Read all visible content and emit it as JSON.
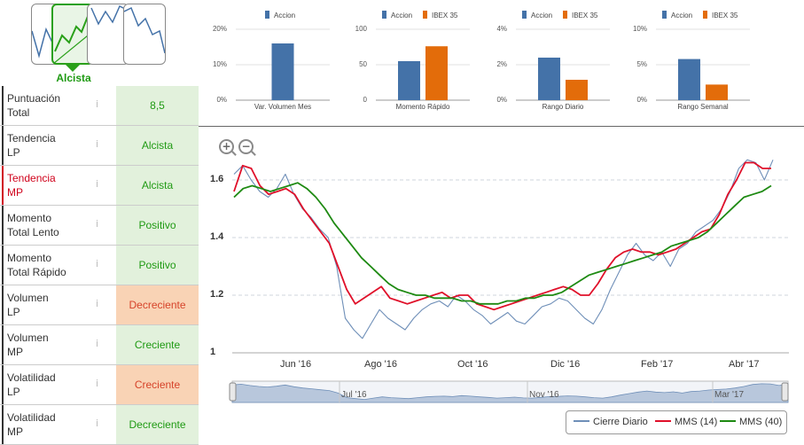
{
  "trend": {
    "selected_label": "Alcista"
  },
  "indicators": [
    {
      "label": "Puntuación\nTotal",
      "value": "8,5",
      "status": "green",
      "label_red": false
    },
    {
      "label": "Tendencia\nLP",
      "value": "Alcista",
      "status": "green",
      "label_red": false
    },
    {
      "label": "Tendencia\nMP",
      "value": "Alcista",
      "status": "green",
      "label_red": true
    },
    {
      "label": "Momento\nTotal Lento",
      "value": "Positivo",
      "status": "green",
      "label_red": false
    },
    {
      "label": "Momento\nTotal Rápido",
      "value": "Positivo",
      "status": "green",
      "label_red": false
    },
    {
      "label": "Volumen\nLP",
      "value": "Decreciente",
      "status": "orange",
      "label_red": false
    },
    {
      "label": "Volumen\nMP",
      "value": "Creciente",
      "status": "green",
      "label_red": false
    },
    {
      "label": "Volatilidad\nLP",
      "value": "Creciente",
      "status": "orange",
      "label_red": false
    },
    {
      "label": "Volatilidad\nMP",
      "value": "Decreciente",
      "status": "green",
      "label_red": false
    }
  ],
  "info_icon": "i",
  "colors": {
    "accion": "#4472a8",
    "ibex": "#e36c0a",
    "green_text": "#1f9a13",
    "cierre": "#6f8fb8",
    "mms14": "#e0102a",
    "mms40": "#1e8a12"
  },
  "mini_charts": [
    {
      "legend": [
        "Accion"
      ],
      "ticks": [
        "20%",
        "10%",
        "0%"
      ],
      "xlabel": "Var. Volumen Mes",
      "values": [
        16
      ],
      "max": 20
    },
    {
      "legend": [
        "Accion",
        "IBEX 35"
      ],
      "ticks": [
        "100",
        "50",
        "0"
      ],
      "xlabel": "Momento Rápido",
      "values": [
        55,
        76
      ],
      "max": 100
    },
    {
      "legend": [
        "Accion",
        "IBEX 35"
      ],
      "ticks": [
        "4%",
        "2%",
        "0%"
      ],
      "xlabel": "Rango Diario",
      "values": [
        2.4,
        1.15
      ],
      "max": 4
    },
    {
      "legend": [
        "Accion",
        "IBEX 35"
      ],
      "ticks": [
        "10%",
        "5%",
        "0%"
      ],
      "xlabel": "Rango Semanal",
      "values": [
        5.8,
        2.2
      ],
      "max": 10
    }
  ],
  "zoom": {
    "in": "+",
    "out": "−"
  },
  "chart_data": {
    "type": "line",
    "y_ticks": [
      "1.6",
      "1.4",
      "1.2",
      "1"
    ],
    "ylim": [
      1.0,
      1.68
    ],
    "x_ticks": [
      "Jun '16",
      "Ago '16",
      "Oct '16",
      "Dic '16",
      "Feb '17",
      "Abr '17"
    ],
    "navigator_labels": [
      "Jul '16",
      "Nov '16",
      "Mar '17"
    ],
    "series": [
      {
        "name": "Cierre Diario",
        "values": [
          1.62,
          1.65,
          1.6,
          1.56,
          1.54,
          1.57,
          1.62,
          1.55,
          1.5,
          1.47,
          1.43,
          1.4,
          1.3,
          1.12,
          1.08,
          1.05,
          1.1,
          1.15,
          1.12,
          1.1,
          1.08,
          1.12,
          1.15,
          1.17,
          1.18,
          1.16,
          1.2,
          1.18,
          1.15,
          1.13,
          1.1,
          1.12,
          1.14,
          1.11,
          1.1,
          1.13,
          1.16,
          1.17,
          1.19,
          1.18,
          1.15,
          1.12,
          1.1,
          1.15,
          1.22,
          1.28,
          1.34,
          1.38,
          1.34,
          1.32,
          1.35,
          1.3,
          1.36,
          1.38,
          1.42,
          1.44,
          1.46,
          1.5,
          1.56,
          1.64,
          1.67,
          1.66,
          1.6,
          1.67
        ]
      },
      {
        "name": "MMS (14)",
        "values": [
          1.56,
          1.65,
          1.64,
          1.58,
          1.55,
          1.56,
          1.57,
          1.55,
          1.5,
          1.46,
          1.42,
          1.38,
          1.3,
          1.22,
          1.17,
          1.19,
          1.21,
          1.23,
          1.19,
          1.18,
          1.17,
          1.18,
          1.19,
          1.2,
          1.21,
          1.19,
          1.2,
          1.2,
          1.17,
          1.16,
          1.15,
          1.16,
          1.17,
          1.18,
          1.19,
          1.2,
          1.21,
          1.22,
          1.23,
          1.22,
          1.2,
          1.2,
          1.24,
          1.29,
          1.33,
          1.35,
          1.36,
          1.35,
          1.35,
          1.34,
          1.35,
          1.36,
          1.38,
          1.4,
          1.42,
          1.43,
          1.48,
          1.55,
          1.6,
          1.66,
          1.66,
          1.64,
          1.64
        ]
      },
      {
        "name": "MMS (40)",
        "values": [
          1.54,
          1.57,
          1.58,
          1.57,
          1.56,
          1.57,
          1.58,
          1.59,
          1.57,
          1.54,
          1.5,
          1.45,
          1.41,
          1.37,
          1.33,
          1.3,
          1.27,
          1.24,
          1.22,
          1.21,
          1.2,
          1.2,
          1.19,
          1.19,
          1.19,
          1.18,
          1.18,
          1.17,
          1.17,
          1.17,
          1.18,
          1.18,
          1.19,
          1.19,
          1.2,
          1.2,
          1.21,
          1.23,
          1.25,
          1.27,
          1.28,
          1.29,
          1.3,
          1.31,
          1.32,
          1.33,
          1.34,
          1.35,
          1.37,
          1.38,
          1.39,
          1.4,
          1.42,
          1.45,
          1.48,
          1.51,
          1.54,
          1.55,
          1.56,
          1.58
        ]
      }
    ]
  }
}
